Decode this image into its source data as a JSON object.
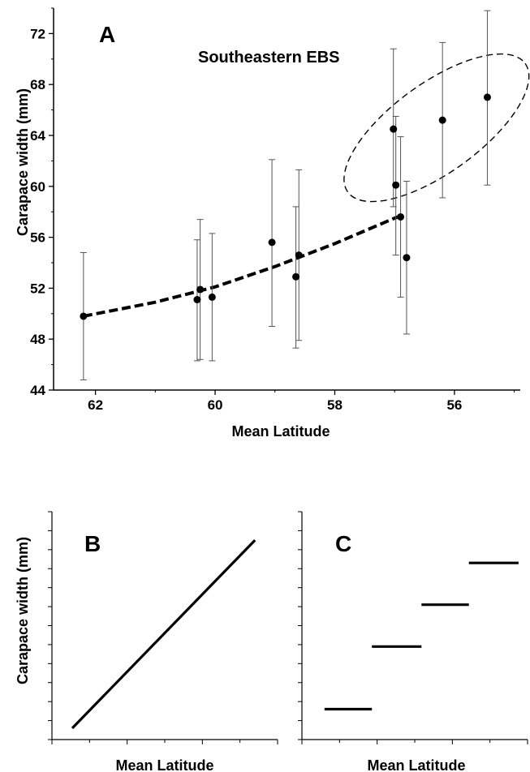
{
  "chart_data": [
    {
      "panel": "A",
      "type": "scatter",
      "title": "Southeastern EBS",
      "xlabel": "Mean Latitude",
      "ylabel": "Carapace width (mm)",
      "xlim": [
        62.7,
        54.9
      ],
      "ylim": [
        44,
        74
      ],
      "x_reversed": true,
      "x_ticks": [
        62,
        60,
        58,
        56
      ],
      "y_ticks": [
        44,
        48,
        52,
        56,
        60,
        64,
        68,
        72
      ],
      "series": [
        {
          "points": [
            {
              "x": 62.2,
              "y": 49.8,
              "lo": 44.8,
              "hi": 54.8
            },
            {
              "x": 60.3,
              "y": 51.1,
              "lo": 46.3,
              "hi": 55.8
            },
            {
              "x": 60.25,
              "y": 51.9,
              "lo": 46.4,
              "hi": 57.4
            },
            {
              "x": 60.05,
              "y": 51.3,
              "lo": 46.3,
              "hi": 56.3
            },
            {
              "x": 59.05,
              "y": 55.6,
              "lo": 49.0,
              "hi": 62.1
            },
            {
              "x": 58.65,
              "y": 52.9,
              "lo": 47.3,
              "hi": 58.4
            },
            {
              "x": 58.6,
              "y": 54.6,
              "lo": 47.9,
              "hi": 61.3
            },
            {
              "x": 56.8,
              "y": 54.4,
              "lo": 48.4,
              "hi": 60.4
            },
            {
              "x": 56.9,
              "y": 57.6,
              "lo": 51.3,
              "hi": 63.9
            },
            {
              "x": 56.98,
              "y": 60.1,
              "lo": 54.6,
              "hi": 65.5
            },
            {
              "x": 57.02,
              "y": 64.5,
              "lo": 58.4,
              "hi": 70.8
            },
            {
              "x": 56.2,
              "y": 65.2,
              "lo": 59.1,
              "hi": 71.3
            },
            {
              "x": 55.45,
              "y": 67.0,
              "lo": 60.1,
              "hi": 73.8
            }
          ]
        }
      ],
      "trend_line": {
        "style": "dashed",
        "points": [
          {
            "x": 62.2,
            "y": 49.8
          },
          {
            "x": 61.0,
            "y": 50.9
          },
          {
            "x": 60.0,
            "y": 52.1
          },
          {
            "x": 59.0,
            "y": 53.7
          },
          {
            "x": 58.0,
            "y": 55.5
          },
          {
            "x": 57.2,
            "y": 57.1
          },
          {
            "x": 56.95,
            "y": 57.6
          }
        ]
      },
      "highlight_ellipse": {
        "style": "dashed",
        "center_x": 56.3,
        "center_y": 64.6,
        "encloses_points": 5
      }
    },
    {
      "panel": "B",
      "type": "line",
      "xlabel": "Mean Latitude",
      "ylabel": "Carapace width (mm)",
      "xlim": [
        0,
        10
      ],
      "ylim": [
        0,
        12
      ],
      "x_tick_count": 6,
      "y_tick_count": 12,
      "series": [
        {
          "points": [
            {
              "x": 0.9,
              "y": 0.6
            },
            {
              "x": 9.0,
              "y": 10.5
            }
          ]
        }
      ]
    },
    {
      "panel": "C",
      "type": "line",
      "xlabel": "Mean Latitude",
      "xlim": [
        0,
        10
      ],
      "ylim": [
        0,
        12
      ],
      "x_tick_count": 6,
      "y_tick_count": 12,
      "series": [
        {
          "points": [
            {
              "x": 1.0,
              "y": 1.6
            },
            {
              "x": 3.1,
              "y": 1.6
            }
          ]
        },
        {
          "points": [
            {
              "x": 3.1,
              "y": 4.9
            },
            {
              "x": 5.3,
              "y": 4.9
            }
          ]
        },
        {
          "points": [
            {
              "x": 5.3,
              "y": 7.1
            },
            {
              "x": 7.4,
              "y": 7.1
            }
          ]
        },
        {
          "points": [
            {
              "x": 7.4,
              "y": 9.3
            },
            {
              "x": 9.6,
              "y": 9.3
            }
          ]
        }
      ]
    }
  ]
}
